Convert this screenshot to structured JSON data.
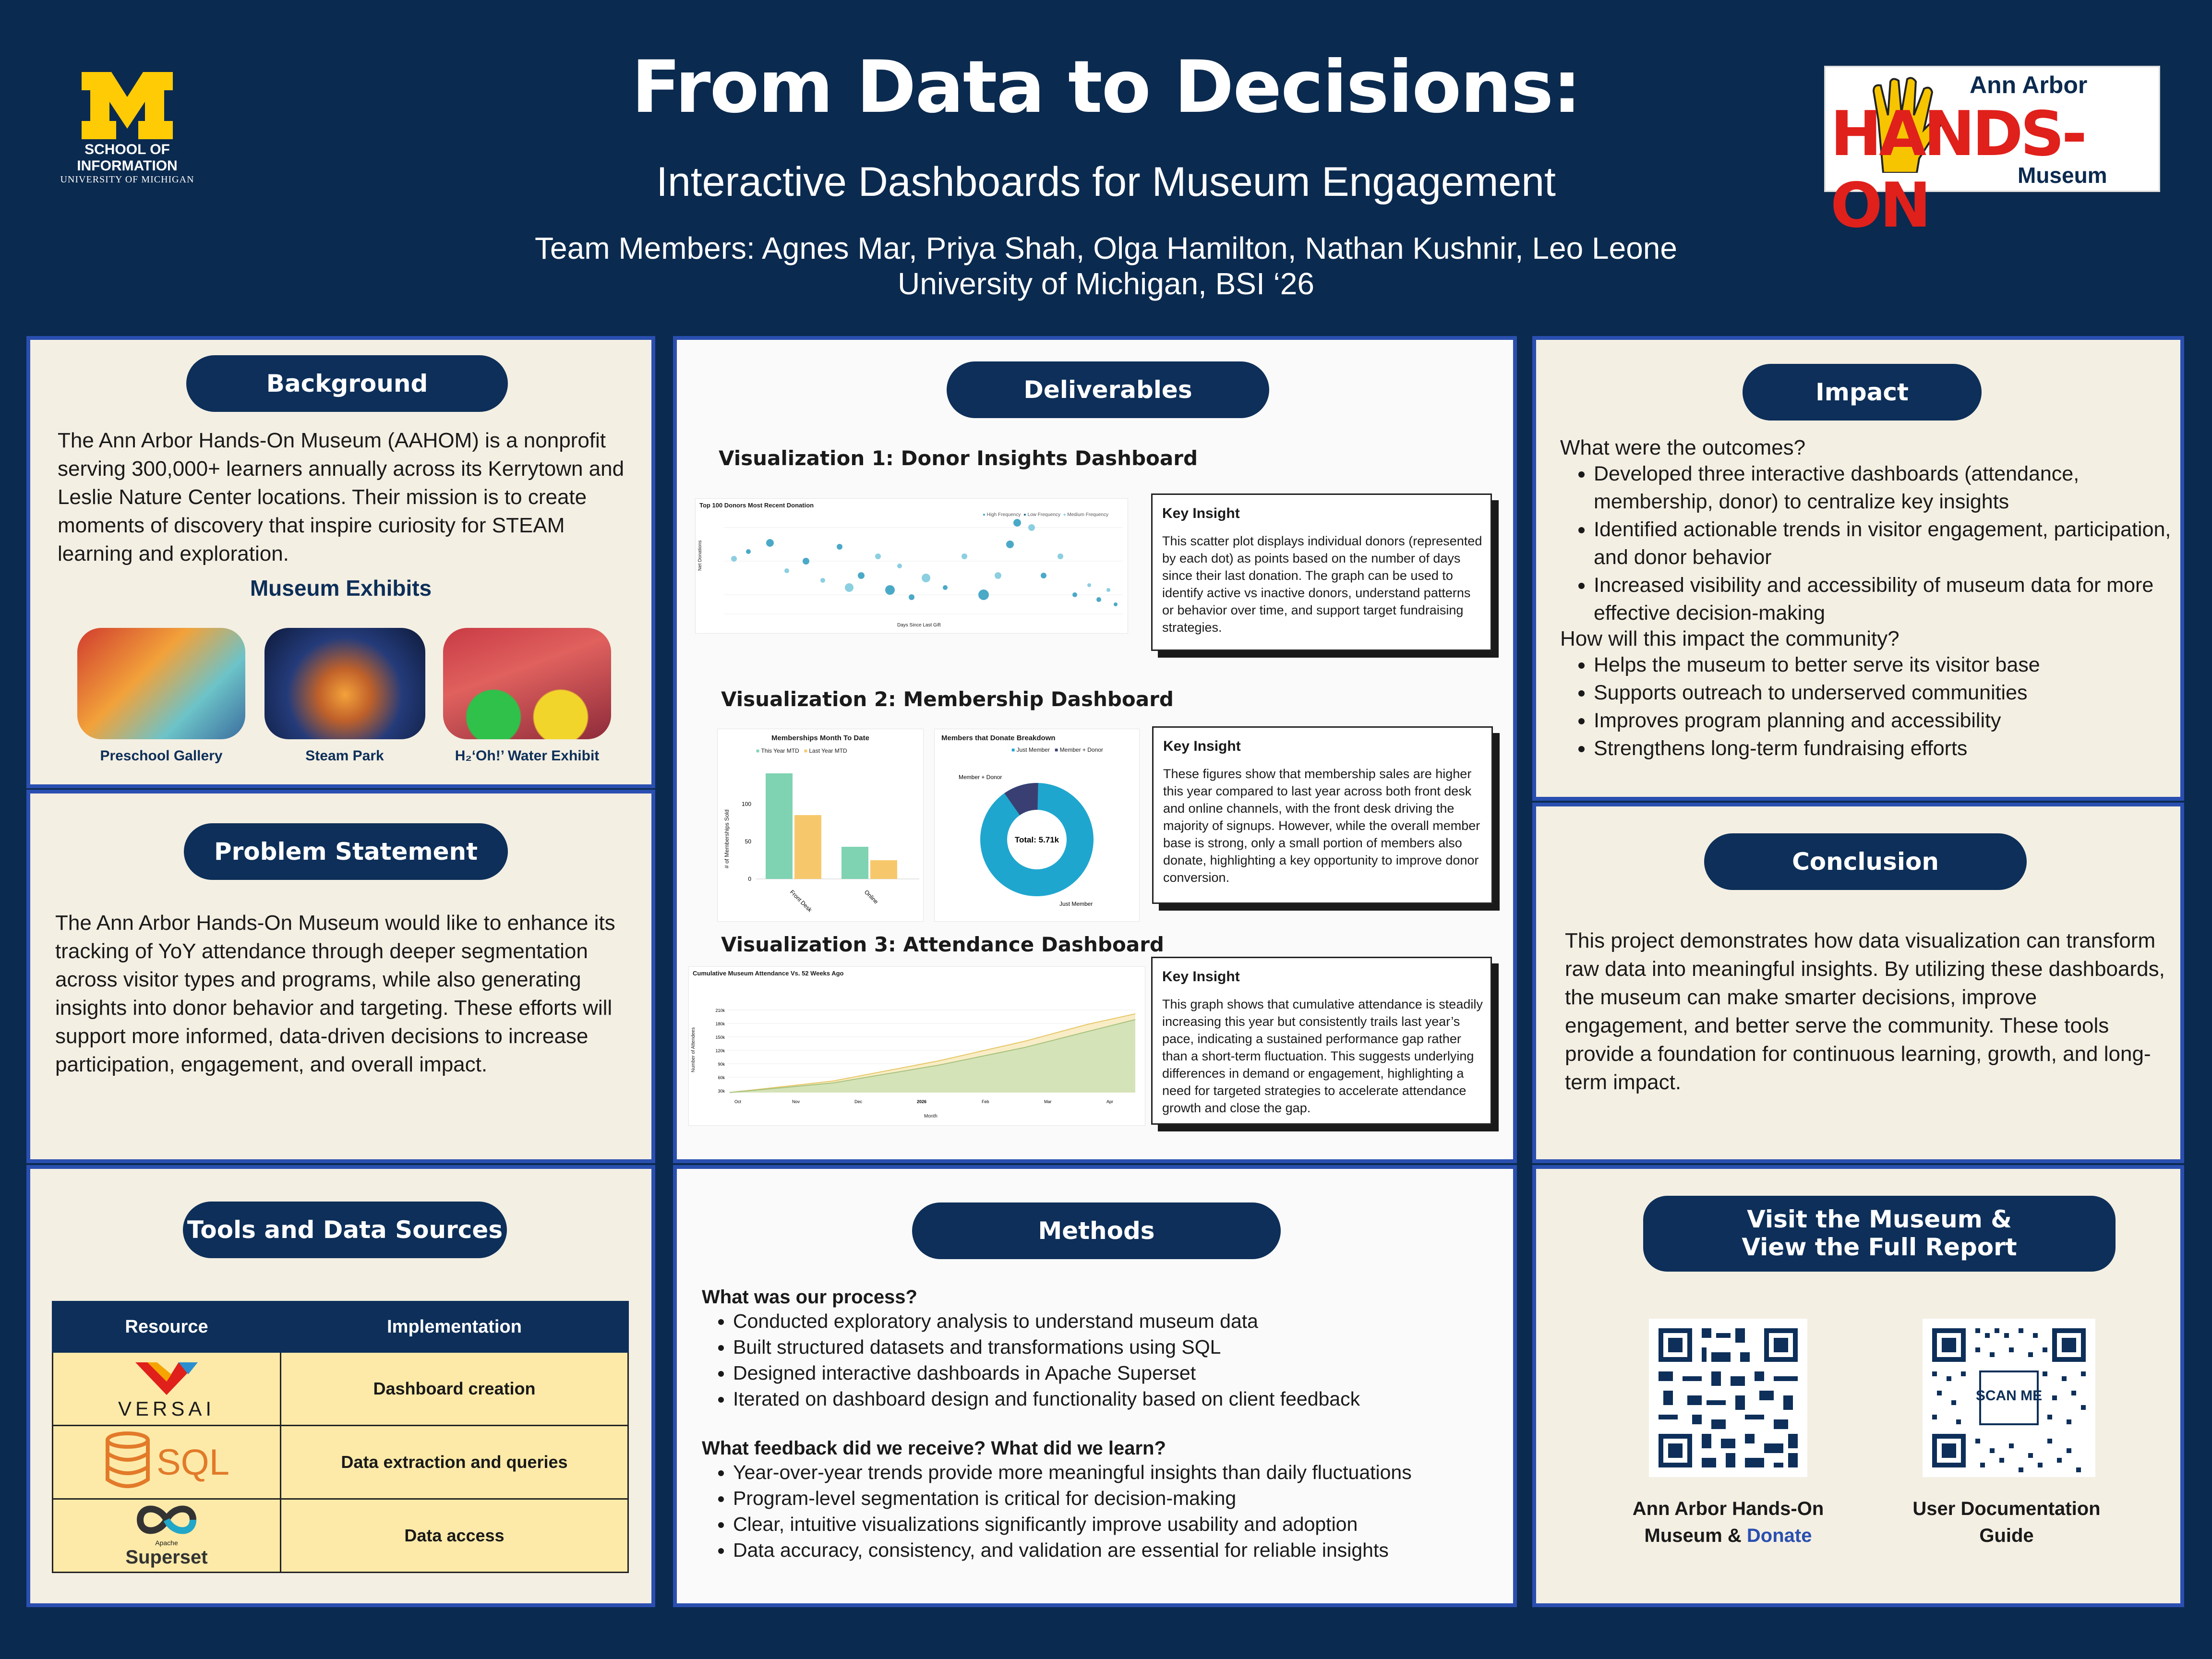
{
  "header": {
    "title": "From Data to Decisions:",
    "subtitle": "Interactive Dashboards for Museum Engagement",
    "team": "Team Members: Agnes Mar, Priya Shah, Olga Hamilton, Nathan Kushnir, Leo Leone",
    "affiliation": "University of Michigan, BSI ‘26",
    "um_logo": {
      "line1": "SCHOOL OF",
      "line2": "INFORMATION",
      "line3": "UNIVERSITY OF MICHIGAN"
    },
    "aahom_logo": {
      "top": "Ann Arbor",
      "mid": "HANDS-ON",
      "bottom": "Museum"
    }
  },
  "background": {
    "title": "Background",
    "text": "The Ann Arbor Hands-On Museum (AAHOM) is a nonprofit serving 300,000+ learners annually across its Kerrytown and Leslie Nature Center locations. Their mission is to create moments of discovery that inspire curiosity for STEAM learning and exploration.",
    "exhibits_title": "Museum Exhibits",
    "exhibits": [
      "Preschool Gallery",
      "Steam Park",
      "H₂‘Oh!’ Water Exhibit"
    ]
  },
  "problem": {
    "title": "Problem Statement",
    "text": "The Ann Arbor Hands-On Museum would like to enhance its tracking of YoY attendance through deeper segmentation across visitor types and programs, while also generating insights into donor behavior and targeting. These efforts will support more informed, data-driven decisions to increase participation, engagement, and overall impact."
  },
  "tools": {
    "title": "Tools and Data Sources",
    "headers": [
      "Resource",
      "Implementation"
    ],
    "rows": [
      {
        "resource": "VERSAI",
        "impl": "Dashboard creation"
      },
      {
        "resource": "SQL",
        "impl": "Data extraction and queries"
      },
      {
        "resource": "Superset",
        "resource_small": "Apache",
        "impl": "Data access"
      }
    ]
  },
  "deliverables": {
    "title": "Deliverables",
    "key_insight_label": "Key Insight",
    "vis1": {
      "title": "Visualization 1: Donor Insights Dashboard",
      "chart_title": "Top 100 Donors Most Recent Donation",
      "legend": [
        "High Frequency",
        "Low Frequency",
        "Medium Frequency"
      ],
      "xlabel": "Days Since Last Gift",
      "ylabel": "Net Donations",
      "insight": "This scatter plot displays individual donors (represented by each dot) as points based on the number of days since their last donation. The graph can be used to identify active vs inactive donors, understand patterns or behavior over time, and support target fundraising strategies."
    },
    "vis2": {
      "title": "Visualization 2: Membership Dashboard",
      "bar_title": "Memberships Month To Date",
      "bar_legend": [
        "This Year MTD",
        "Last Year MTD"
      ],
      "bar_ylabel": "# of Memberships Sold",
      "bar_categories": [
        "Front Desk",
        "Online"
      ],
      "bar_ticks": [
        "100",
        "50",
        "0"
      ],
      "donut_title": "Members that Donate Breakdown",
      "donut_legend": [
        "Just Member",
        "Member + Donor"
      ],
      "donut_center": "Total: 5.71k",
      "donut_labels": [
        "Member + Donor",
        "Just Member"
      ],
      "insight": "These figures show that membership sales are higher this year compared to last year across both front desk and online channels, with the front desk driving the majority of signups. However, while the overall member base is strong, only a small portion of members also donate, highlighting a key opportunity to improve donor conversion."
    },
    "vis3": {
      "title": "Visualization 3: Attendance Dashboard",
      "chart_title": "Cumulative Museum Attendance Vs. 52 Weeks Ago",
      "xlabel": "Month",
      "ylabel": "Number of Attendees",
      "insight": "This graph shows that cumulative attendance is steadily increasing this year but consistently trails last year’s pace, indicating a sustained performance gap rather than a short-term fluctuation. This suggests underlying differences in demand or engagement, highlighting a need for targeted strategies to accelerate attendance growth and close the gap."
    }
  },
  "chart_data": [
    {
      "type": "scatter",
      "title": "Top 100 Donors Most Recent Donation",
      "xlabel": "Days Since Last Gift",
      "ylabel": "Net Donations",
      "series": [
        {
          "name": "High Frequency"
        },
        {
          "name": "Low Frequency"
        },
        {
          "name": "Medium Frequency"
        }
      ]
    },
    {
      "type": "bar",
      "title": "Memberships Month To Date",
      "categories": [
        "Front Desk",
        "Online"
      ],
      "ylabel": "# of Memberships Sold",
      "ylim": [
        0,
        150
      ],
      "series": [
        {
          "name": "This Year MTD",
          "values": [
            140,
            43
          ]
        },
        {
          "name": "Last Year MTD",
          "values": [
            86,
            25
          ]
        }
      ]
    },
    {
      "type": "pie",
      "title": "Members that Donate Breakdown",
      "categories": [
        "Just Member",
        "Member + Donor"
      ],
      "values": [
        90,
        10
      ],
      "center_label": "Total: 5.71k"
    },
    {
      "type": "area",
      "title": "Cumulative Museum Attendance Vs. 52 Weeks Ago",
      "xlabel": "Month",
      "ylabel": "Number of Attendees",
      "categories": [
        "Oct",
        "Nov",
        "Dec",
        "2026",
        "Feb",
        "Mar",
        "Apr"
      ],
      "yticks": [
        "210k",
        "180k",
        "150k",
        "120k",
        "90k",
        "60k",
        "30k",
        "0"
      ]
    }
  ],
  "methods": {
    "title": "Methods",
    "q1": "What was our process?",
    "process": [
      "Conducted exploratory analysis to understand museum data",
      "Built structured datasets and transformations using SQL",
      "Designed interactive dashboards in Apache Superset",
      "Iterated on dashboard design and functionality based on client feedback"
    ],
    "q2": "What feedback did we receive? What did we learn?",
    "feedback": [
      "Year-over-year trends provide more meaningful insights than daily fluctuations",
      "Program-level segmentation is critical for decision-making",
      "Clear, intuitive visualizations significantly improve usability and adoption",
      "Data accuracy, consistency, and validation are essential for reliable insights"
    ]
  },
  "impact": {
    "title": "Impact",
    "q1": "What were the outcomes?",
    "outcomes": [
      "Developed three interactive dashboards (attendance, membership, donor) to centralize key insights",
      "Identified actionable trends in visitor engagement, participation, and donor behavior",
      "Increased visibility and accessibility of museum data for more effective decision-making"
    ],
    "q2": "How will this impact the community?",
    "community": [
      "Helps the museum to better serve its visitor base",
      "Supports outreach to underserved communities",
      "Improves program planning and accessibility",
      "Strengthens long-term fundraising efforts"
    ]
  },
  "conclusion": {
    "title": "Conclusion",
    "text": "This project demonstrates how data visualization can transform raw data into meaningful insights. By utilizing these dashboards, the museum can make smarter decisions, improve engagement, and better serve the community. These tools provide a foundation for continuous learning, growth, and long-term impact."
  },
  "visit": {
    "title_line1": "Visit the Museum &",
    "title_line2": "View the Full Report",
    "qr1_caption_line1": "Ann Arbor Hands-On",
    "qr1_caption_line2": "Museum & ",
    "qr1_link": "Donate",
    "qr2_caption_line1": "User Documentation",
    "qr2_caption_line2": "Guide",
    "qr2_center": "SCAN ME"
  }
}
